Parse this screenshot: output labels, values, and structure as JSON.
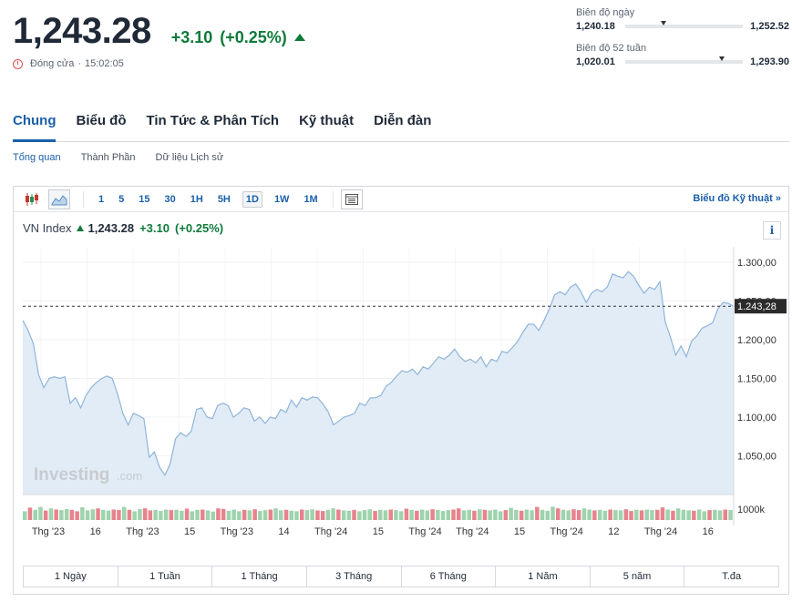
{
  "quote": {
    "price": "1,243.28",
    "change": "+3.10",
    "change_pct": "(+0.25%)",
    "status": "Đóng cửa",
    "separator": "·",
    "time": "15:02:05"
  },
  "day_range": {
    "label": "Biên độ ngày",
    "low": "1,240.18",
    "high": "1,252.52",
    "position": 0.3
  },
  "week52_range": {
    "label": "Biên độ 52 tuần",
    "low": "1,020.01",
    "high": "1,293.90",
    "position": 0.8
  },
  "main_tabs": [
    {
      "label": "Chung",
      "active": true
    },
    {
      "label": "Biểu đồ",
      "active": false
    },
    {
      "label": "Tin Tức & Phân Tích",
      "active": false
    },
    {
      "label": "Kỹ thuật",
      "active": false
    },
    {
      "label": "Diễn đàn",
      "active": false
    }
  ],
  "sub_tabs": [
    {
      "label": "Tổng quan",
      "active": true
    },
    {
      "label": "Thành Phần",
      "active": false
    },
    {
      "label": "Dữ liệu Lịch sử",
      "active": false
    }
  ],
  "toolbar": {
    "periods": [
      "1",
      "5",
      "15",
      "30",
      "1H",
      "5H",
      "1D",
      "1W",
      "1M"
    ],
    "active_period": "1D",
    "tech_link": "Biểu đồ Kỹ thuật",
    "tech_arrow": "»",
    "icons": [
      "candlestick-icon",
      "area-chart-icon",
      "settings-panel-icon"
    ]
  },
  "legend": {
    "name": "VN Index",
    "value": "1,243.28",
    "change": "+3.10",
    "change_pct": "(+0.25%)"
  },
  "info_label": "i",
  "watermark": {
    "brand": "Investing",
    "suffix": ".com"
  },
  "chart_data": {
    "type": "area",
    "y_ticks": [
      "1.300,00",
      "1.250,00",
      "1.200,00",
      "1.150,00",
      "1.100,00",
      "1.050,00"
    ],
    "y_tick_values": [
      1300,
      1250,
      1200,
      1150,
      1100,
      1050
    ],
    "ylim": [
      1000,
      1320
    ],
    "current_price_label": "1.243,28",
    "current_price": 1243.28,
    "volume_label": "1000k",
    "x_tick_labels": [
      "Thg '23",
      "16",
      "Thg '23",
      "15",
      "Thg '23",
      "14",
      "Thg '24",
      "15",
      "Thg '24",
      "Thg '24",
      "15",
      "Thg '24",
      "12",
      "Thg '24",
      "16"
    ],
    "values": [
      1225,
      1212,
      1195,
      1155,
      1138,
      1150,
      1152,
      1150,
      1152,
      1118,
      1125,
      1112,
      1128,
      1138,
      1145,
      1150,
      1153,
      1150,
      1130,
      1105,
      1090,
      1105,
      1102,
      1098,
      1048,
      1055,
      1035,
      1025,
      1040,
      1072,
      1080,
      1075,
      1082,
      1110,
      1112,
      1100,
      1098,
      1115,
      1118,
      1115,
      1100,
      1105,
      1112,
      1110,
      1095,
      1100,
      1092,
      1100,
      1098,
      1110,
      1106,
      1122,
      1113,
      1125,
      1122,
      1126,
      1125,
      1117,
      1107,
      1090,
      1095,
      1100,
      1102,
      1105,
      1118,
      1115,
      1125,
      1125,
      1128,
      1140,
      1145,
      1153,
      1160,
      1158,
      1162,
      1155,
      1165,
      1162,
      1170,
      1178,
      1175,
      1180,
      1188,
      1178,
      1172,
      1175,
      1170,
      1178,
      1165,
      1175,
      1172,
      1185,
      1183,
      1190,
      1198,
      1210,
      1220,
      1220,
      1212,
      1225,
      1240,
      1258,
      1262,
      1258,
      1268,
      1272,
      1262,
      1248,
      1260,
      1265,
      1262,
      1268,
      1285,
      1282,
      1280,
      1288,
      1282,
      1270,
      1260,
      1268,
      1265,
      1275,
      1223,
      1203,
      1180,
      1192,
      1178,
      1198,
      1205,
      1215,
      1218,
      1222,
      1240,
      1248,
      1247,
      1243
    ],
    "volume_up": [
      1,
      0,
      1,
      1,
      0,
      1,
      0,
      1,
      1,
      0,
      0,
      1,
      1,
      1,
      0,
      1,
      1,
      0,
      0,
      1,
      0,
      1,
      1,
      0,
      0,
      1,
      1,
      1,
      0,
      1,
      1,
      0,
      1,
      1,
      0,
      1,
      1,
      0,
      0,
      1,
      1,
      1,
      0,
      1,
      0,
      1,
      1,
      0,
      1,
      1,
      0,
      1,
      1,
      0,
      1,
      1,
      0,
      0,
      1,
      1,
      0,
      1,
      1,
      0,
      1,
      1,
      1,
      0,
      1,
      1,
      0,
      1,
      1,
      0,
      1,
      0,
      1,
      1,
      0,
      1,
      1,
      1,
      0,
      0,
      1,
      1,
      0,
      1,
      0,
      1,
      1,
      1,
      0,
      1,
      1,
      0,
      1,
      1,
      0,
      1,
      1,
      1,
      0,
      1,
      1,
      0,
      0,
      1,
      1,
      0,
      1,
      1,
      0,
      1,
      1,
      0,
      0,
      1,
      0,
      1,
      1,
      0,
      0,
      1,
      0,
      1,
      1,
      1,
      0,
      1,
      1,
      0,
      1,
      1,
      0,
      1
    ],
    "volume": [
      60,
      85,
      70,
      90,
      65,
      80,
      72,
      68,
      75,
      70,
      60,
      88,
      66,
      74,
      80,
      70,
      65,
      72,
      68,
      90,
      70,
      60,
      75,
      80,
      66,
      70,
      62,
      72,
      68,
      70,
      64,
      78,
      60,
      70,
      72,
      66,
      58,
      80,
      76,
      64,
      72,
      60,
      70,
      66,
      74,
      62,
      68,
      72,
      80,
      66,
      70,
      64,
      60,
      72,
      68,
      74,
      66,
      62,
      70,
      80,
      72,
      66,
      64,
      70,
      60,
      68,
      74,
      62,
      70,
      66,
      72,
      68,
      60,
      78,
      70,
      64,
      72,
      66,
      74,
      70,
      62,
      68,
      72,
      80,
      66,
      70,
      64,
      74,
      70,
      66,
      72,
      60,
      68,
      84,
      70,
      64,
      72,
      66,
      90,
      70,
      64,
      92,
      80,
      70,
      66,
      74,
      68,
      80,
      72,
      66,
      70,
      64,
      72,
      68,
      66,
      74,
      62,
      70,
      66,
      72,
      68,
      70,
      86,
      72,
      64,
      80,
      70,
      66,
      64,
      72,
      60,
      68,
      70,
      66,
      72,
      68
    ]
  },
  "range_buttons": [
    "1 Ngày",
    "1 Tuần",
    "1 Tháng",
    "3 Tháng",
    "6 Tháng",
    "1 Năm",
    "5 năm",
    "T.đa"
  ]
}
